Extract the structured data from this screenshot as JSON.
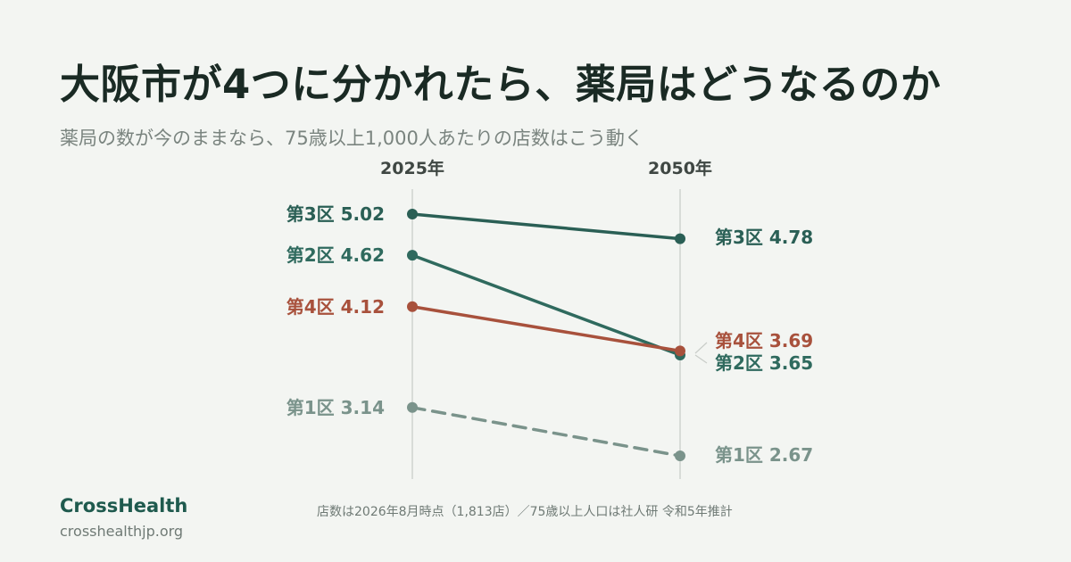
{
  "header": {
    "title": "大阪市が4つに分かれたら、薬局はどうなるのか",
    "subtitle": "薬局の数が今のままなら、75歳以上1,000人あたりの店数はこう動く"
  },
  "footer": {
    "brand": "CrossHealth",
    "url": "crosshealthjp.org",
    "source": "店数は2026年8月時点（1,813店）／75歳以上人口は社人研 令和5年推計"
  },
  "chart_data": {
    "type": "line",
    "subtype": "slope",
    "x": [
      "2025年",
      "2050年"
    ],
    "y_range": [
      2.6,
      5.1
    ],
    "grid": false,
    "series": [
      {
        "name": "第3区",
        "values": [
          5.02,
          4.78
        ],
        "color": "#2a5f55",
        "style": "solid",
        "labels": [
          "第3区 5.02",
          "第3区 4.78"
        ]
      },
      {
        "name": "第2区",
        "values": [
          4.62,
          3.65
        ],
        "color": "#2f6a5e",
        "style": "solid",
        "labels": [
          "第2区 4.62",
          "第2区 3.65"
        ]
      },
      {
        "name": "第4区",
        "values": [
          4.12,
          3.69
        ],
        "color": "#a8513c",
        "style": "solid",
        "labels": [
          "第4区 4.12",
          "第4区 3.69"
        ]
      },
      {
        "name": "第1区",
        "values": [
          3.14,
          2.67
        ],
        "color": "#7a938b",
        "style": "dashed",
        "labels": [
          "第1区 3.14",
          "第1区 2.67"
        ]
      }
    ]
  }
}
